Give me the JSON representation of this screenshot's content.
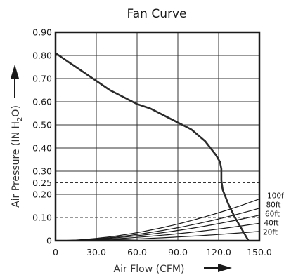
{
  "chart_data": {
    "type": "line",
    "title": "Fan Curve",
    "xlabel": "Air Flow (CFM)",
    "ylabel_prefix": "Air Pressure (IN H",
    "ylabel_sub": "2",
    "ylabel_suffix": "O)",
    "xlim": [
      0,
      150
    ],
    "ylim": [
      0,
      0.9
    ],
    "grid": true,
    "x_ticks": [
      {
        "value": 0,
        "label": "0"
      },
      {
        "value": 30,
        "label": "30.0"
      },
      {
        "value": 60,
        "label": "60.0"
      },
      {
        "value": 90,
        "label": "90.0"
      },
      {
        "value": 120,
        "label": "120.0"
      },
      {
        "value": 150,
        "label": "150.0"
      }
    ],
    "y_ticks": [
      {
        "value": 0,
        "label": "0"
      },
      {
        "value": 0.1,
        "label": "0.10"
      },
      {
        "value": 0.2,
        "label": "0.20"
      },
      {
        "value": 0.25,
        "label": "0.25"
      },
      {
        "value": 0.3,
        "label": "0.30"
      },
      {
        "value": 0.4,
        "label": "0.40"
      },
      {
        "value": 0.5,
        "label": "0.50"
      },
      {
        "value": 0.6,
        "label": "0.60"
      },
      {
        "value": 0.7,
        "label": "0.70"
      },
      {
        "value": 0.8,
        "label": "0.80"
      },
      {
        "value": 0.9,
        "label": "0.90"
      }
    ],
    "dashed_levels": [
      0.25,
      0.1
    ],
    "fan_curve": {
      "x": [
        0,
        10,
        20,
        30,
        40,
        50,
        60,
        70,
        80,
        90,
        100,
        110,
        118,
        121,
        122,
        122,
        123,
        127,
        132,
        137,
        142
      ],
      "y": [
        0.81,
        0.77,
        0.73,
        0.69,
        0.65,
        0.62,
        0.59,
        0.57,
        0.54,
        0.51,
        0.48,
        0.43,
        0.37,
        0.34,
        0.31,
        0.26,
        0.22,
        0.16,
        0.1,
        0.05,
        0.0
      ]
    },
    "system_curves": [
      {
        "label": "100ft",
        "end_y": 0.18
      },
      {
        "label": "80ft",
        "end_y": 0.14
      },
      {
        "label": "60ft",
        "end_y": 0.11
      },
      {
        "label": "40ft",
        "end_y": 0.075
      },
      {
        "label": "20ft",
        "end_y": 0.04
      }
    ]
  }
}
